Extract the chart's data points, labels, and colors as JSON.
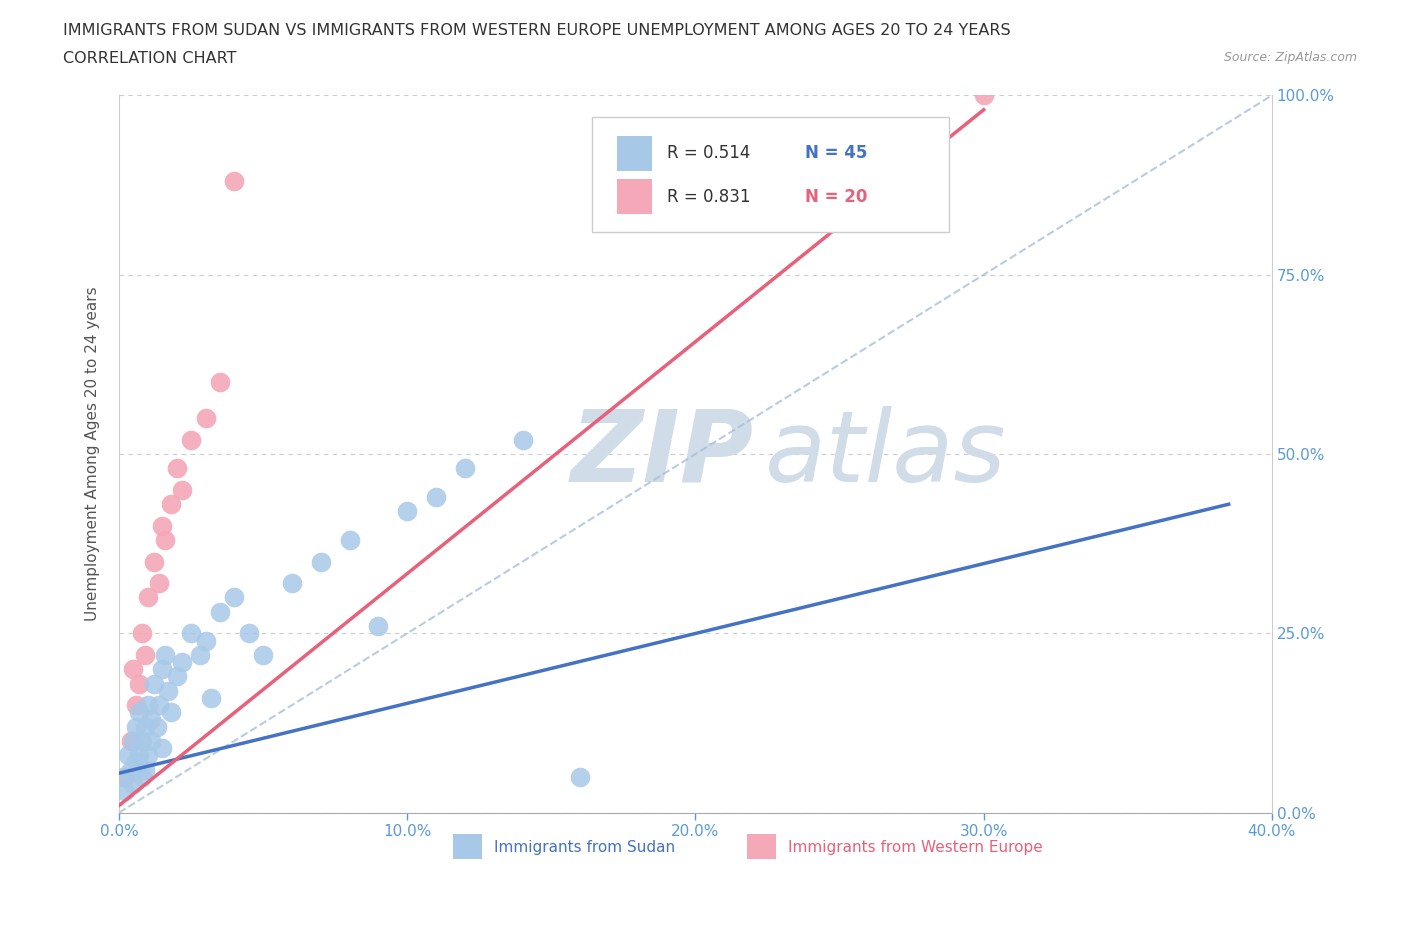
{
  "title_line1": "IMMIGRANTS FROM SUDAN VS IMMIGRANTS FROM WESTERN EUROPE UNEMPLOYMENT AMONG AGES 20 TO 24 YEARS",
  "title_line2": "CORRELATION CHART",
  "source_text": "Source: ZipAtlas.com",
  "ylabel": "Unemployment Among Ages 20 to 24 years",
  "xlim": [
    0.0,
    0.4
  ],
  "ylim": [
    0.0,
    1.0
  ],
  "xtick_vals": [
    0.0,
    0.1,
    0.2,
    0.3,
    0.4
  ],
  "ytick_vals": [
    0.0,
    0.25,
    0.5,
    0.75,
    1.0
  ],
  "sudan_color": "#a8c8e8",
  "western_europe_color": "#f4a8b8",
  "sudan_trend_color": "#4472c4",
  "western_europe_trend_color": "#e8607a",
  "reference_line_color": "#a8c0d8",
  "watermark_color": "#d0dce8",
  "tick_color": "#5b9bd5",
  "legend_R_sudan": "R = 0.514",
  "legend_N_sudan": "N = 45",
  "legend_R_we": "R = 0.831",
  "legend_N_we": "N = 20",
  "legend_label_sudan": "Immigrants from Sudan",
  "legend_label_we": "Immigrants from Western Europe",
  "sudan_x": [
    0.001,
    0.002,
    0.003,
    0.004,
    0.005,
    0.005,
    0.006,
    0.006,
    0.007,
    0.007,
    0.008,
    0.008,
    0.009,
    0.009,
    0.01,
    0.01,
    0.011,
    0.011,
    0.012,
    0.013,
    0.014,
    0.015,
    0.015,
    0.016,
    0.017,
    0.018,
    0.02,
    0.022,
    0.025,
    0.028,
    0.03,
    0.032,
    0.035,
    0.04,
    0.045,
    0.05,
    0.06,
    0.07,
    0.08,
    0.09,
    0.1,
    0.11,
    0.12,
    0.14,
    0.16
  ],
  "sudan_y": [
    0.05,
    0.03,
    0.08,
    0.06,
    0.1,
    0.04,
    0.12,
    0.07,
    0.14,
    0.08,
    0.05,
    0.1,
    0.12,
    0.06,
    0.15,
    0.08,
    0.1,
    0.13,
    0.18,
    0.12,
    0.15,
    0.2,
    0.09,
    0.22,
    0.17,
    0.14,
    0.19,
    0.21,
    0.25,
    0.22,
    0.24,
    0.16,
    0.28,
    0.3,
    0.25,
    0.22,
    0.32,
    0.35,
    0.38,
    0.26,
    0.42,
    0.44,
    0.48,
    0.52,
    0.05
  ],
  "we_x": [
    0.002,
    0.004,
    0.005,
    0.006,
    0.007,
    0.008,
    0.009,
    0.01,
    0.012,
    0.014,
    0.015,
    0.016,
    0.018,
    0.02,
    0.022,
    0.025,
    0.03,
    0.035,
    0.04,
    0.3
  ],
  "we_y": [
    0.05,
    0.1,
    0.2,
    0.15,
    0.18,
    0.25,
    0.22,
    0.3,
    0.35,
    0.32,
    0.4,
    0.38,
    0.43,
    0.48,
    0.45,
    0.52,
    0.55,
    0.6,
    0.88,
    1.0
  ],
  "sudan_trend_x": [
    0.0,
    0.385
  ],
  "sudan_trend_y": [
    0.055,
    0.43
  ],
  "we_trend_x": [
    0.0,
    0.3
  ],
  "we_trend_y": [
    0.01,
    0.98
  ]
}
